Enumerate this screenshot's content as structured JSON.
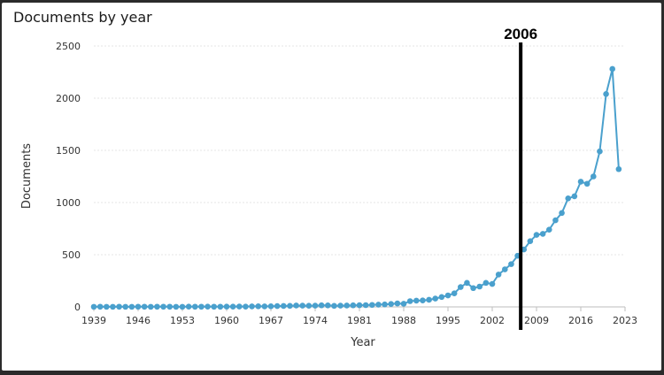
{
  "chart_data": {
    "type": "line",
    "title": "Documents by year",
    "xlabel": "Year",
    "ylabel": "Documents",
    "ylim": [
      0,
      2500
    ],
    "xlim": [
      1939,
      2023
    ],
    "y_ticks": [
      0,
      500,
      1000,
      1500,
      2000,
      2500
    ],
    "x_ticks": [
      1939,
      1946,
      1953,
      1960,
      1967,
      1974,
      1981,
      1988,
      1995,
      2002,
      2009,
      2016,
      2023
    ],
    "grid": true,
    "legend": "none",
    "line_color": "#4aa0cd",
    "marker_color": "#4aa0cd",
    "annotation": {
      "label": "2006",
      "x": 2006.5,
      "color": "#000000"
    },
    "series": [
      {
        "x": [
          1939,
          1940,
          1941,
          1942,
          1943,
          1944,
          1945,
          1946,
          1947,
          1948,
          1949,
          1950,
          1951,
          1952,
          1953,
          1954,
          1955,
          1956,
          1957,
          1958,
          1959,
          1960,
          1961,
          1962,
          1963,
          1964,
          1965,
          1966,
          1967,
          1968,
          1969,
          1970,
          1971,
          1972,
          1973,
          1974,
          1975,
          1976,
          1977,
          1978,
          1979,
          1980,
          1981,
          1982,
          1983,
          1984,
          1985,
          1986,
          1987,
          1988,
          1989,
          1990,
          1991,
          1992,
          1993,
          1994,
          1995,
          1996,
          1997,
          1998,
          1999,
          2000,
          2001,
          2002,
          2003,
          2004,
          2005,
          2006,
          2007,
          2008,
          2009,
          2010,
          2011,
          2012,
          2013,
          2014,
          2015,
          2016,
          2017,
          2018,
          2019,
          2020,
          2021,
          2022
        ],
        "values": [
          1,
          2,
          1,
          1,
          2,
          1,
          1,
          2,
          2,
          1,
          2,
          2,
          2,
          1,
          1,
          3,
          2,
          2,
          3,
          2,
          2,
          3,
          3,
          4,
          3,
          5,
          6,
          5,
          6,
          8,
          9,
          10,
          13,
          12,
          11,
          12,
          15,
          14,
          10,
          12,
          13,
          15,
          16,
          17,
          19,
          22,
          24,
          28,
          33,
          30,
          55,
          60,
          62,
          68,
          80,
          95,
          110,
          130,
          190,
          230,
          180,
          195,
          230,
          220,
          310,
          360,
          410,
          490,
          550,
          630,
          690,
          700,
          740,
          830,
          900,
          1040,
          1060,
          1200,
          1180,
          1250,
          1490,
          2040,
          2280,
          1320
        ]
      }
    ]
  }
}
